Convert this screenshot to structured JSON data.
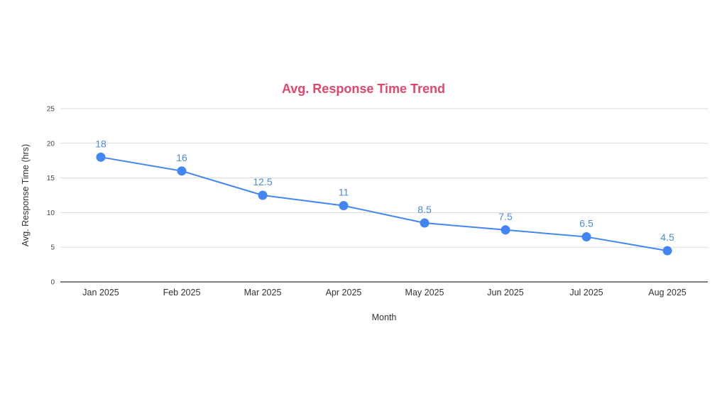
{
  "chart_data": {
    "type": "line",
    "title": "Avg. Response Time Trend",
    "xlabel": "Month",
    "ylabel": "Avg. Response Time (hrs)",
    "categories": [
      "Jan 2025",
      "Feb 2025",
      "Mar 2025",
      "Apr 2025",
      "May 2025",
      "Jun 2025",
      "Jul 2025",
      "Aug 2025"
    ],
    "series": [
      {
        "name": "Avg. Response Time (hrs)",
        "values": [
          18,
          16,
          12.5,
          11,
          8.5,
          7.5,
          6.5,
          4.5
        ]
      }
    ],
    "data_labels": [
      "18",
      "16",
      "12.5",
      "11",
      "8.5",
      "7.5",
      "6.5",
      "4.5"
    ],
    "ylim": [
      0,
      25
    ],
    "yticks": [
      0,
      5,
      10,
      15,
      20,
      25
    ],
    "ytick_labels": [
      "0",
      "5",
      "10",
      "15",
      "20",
      "25"
    ],
    "grid": true,
    "legend": "none"
  },
  "colors": {
    "title": "#e2466b",
    "series": "#4285f4",
    "data_label": "#4a8be0"
  }
}
